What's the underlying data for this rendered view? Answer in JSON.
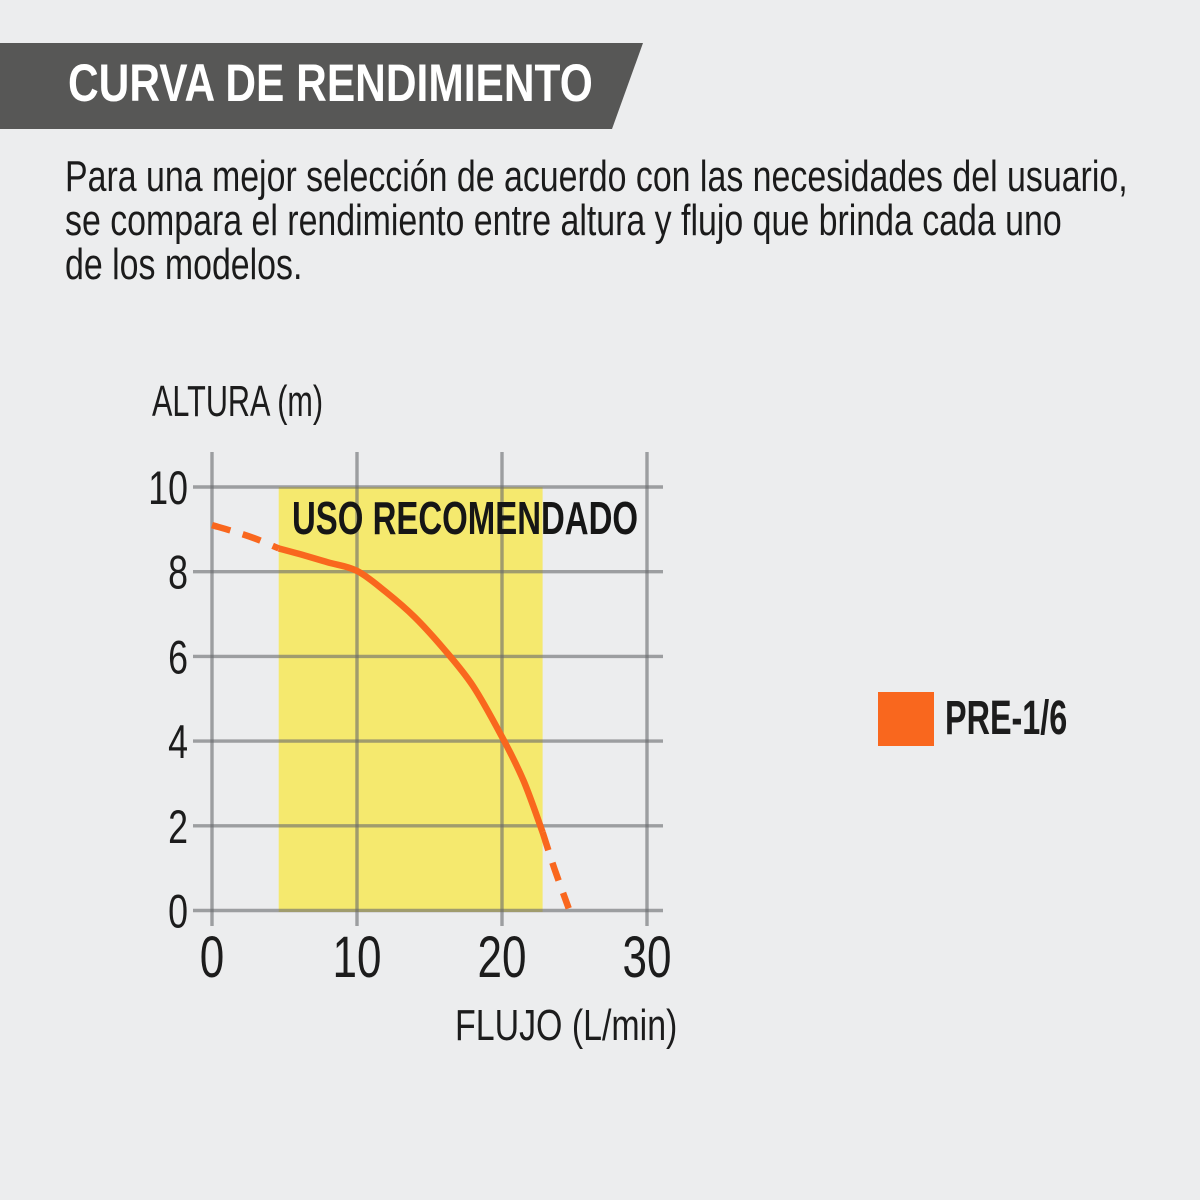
{
  "banner": {
    "title": "CURVA DE RENDIMIENTO",
    "background_color": "#575756",
    "text_color": "#FFFFFF"
  },
  "intro": {
    "lines": [
      "Para una mejor selección de acuerdo con las necesidades del usuario,",
      "se compara el rendimiento entre altura y flujo que brinda cada uno",
      "de los modelos."
    ]
  },
  "chart_data": {
    "type": "line",
    "title": "",
    "xlabel": "FLUJO (L/min)",
    "ylabel": "ALTURA (m)",
    "xlim": [
      0,
      30
    ],
    "ylim": [
      0,
      10
    ],
    "xticks": [
      0,
      10,
      20,
      30
    ],
    "yticks": [
      0,
      2,
      4,
      6,
      8,
      10
    ],
    "grid": true,
    "background_color": "#ECEDEE",
    "gridline_color": "#9C9DA0",
    "recommended_band": {
      "label": "USO RECOMENDADO",
      "x_start": 4.6,
      "x_end": 22.8,
      "color": "#F5E96E"
    },
    "series": [
      {
        "name": "PRE-1/6",
        "color": "#F9671E",
        "points_dashed_start": [
          [
            0,
            9.1
          ],
          [
            1.5,
            8.95
          ],
          [
            3,
            8.78
          ],
          [
            4.6,
            8.55
          ]
        ],
        "points_solid": [
          [
            4.6,
            8.55
          ],
          [
            6,
            8.42
          ],
          [
            8,
            8.22
          ],
          [
            10,
            8.02
          ],
          [
            12,
            7.52
          ],
          [
            14,
            6.92
          ],
          [
            16,
            6.17
          ],
          [
            18,
            5.3
          ],
          [
            20,
            4.1
          ],
          [
            21.5,
            3.05
          ],
          [
            22.8,
            1.85
          ]
        ],
        "points_dashed_end": [
          [
            22.8,
            1.85
          ],
          [
            23.6,
            1.0
          ],
          [
            24.6,
            0.05
          ]
        ]
      }
    ],
    "legend": {
      "position": "right",
      "entries": [
        {
          "label": "PRE-1/6",
          "color": "#F9671E"
        }
      ]
    }
  }
}
